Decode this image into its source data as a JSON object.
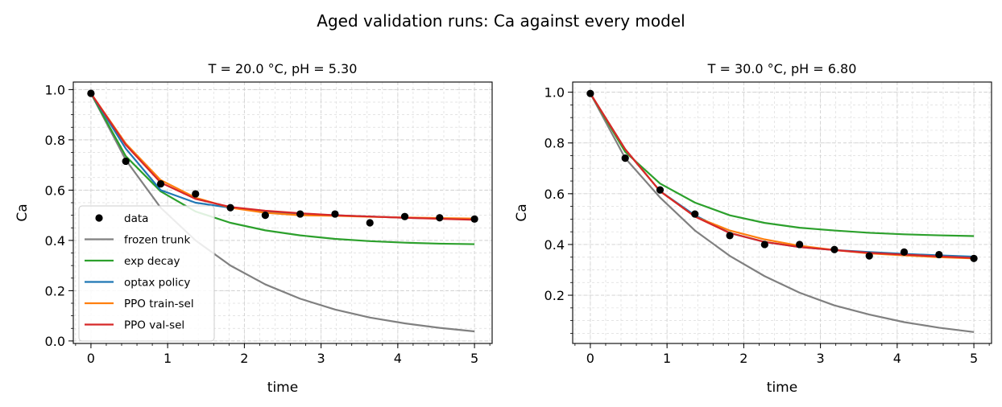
{
  "figure": {
    "title": "Aged validation runs: Ca against every model"
  },
  "colors": {
    "data": "#000000",
    "frozen trunk": "#808080",
    "exp decay": "#2ca02c",
    "optax policy": "#1f77b4",
    "PPO train-sel": "#ff7f0e",
    "PPO val-sel": "#d62728",
    "grid": "#dcdcdc"
  },
  "legend": {
    "location": "lower-left of left panel",
    "entries": [
      "data",
      "frozen trunk",
      "exp decay",
      "optax policy",
      "PPO train-sel",
      "PPO val-sel"
    ]
  },
  "chart_data": [
    {
      "type": "line",
      "title": "T = 20.0 °C, pH = 5.30",
      "xlabel": "time",
      "ylabel": "Ca",
      "xlim": [
        -0.23,
        5.23
      ],
      "ylim": [
        -0.01,
        1.03
      ],
      "xticks": [
        "0",
        "1",
        "2",
        "3",
        "4",
        "5"
      ],
      "yticks": [
        "0.0",
        "0.2",
        "0.4",
        "0.6",
        "0.8",
        "1.0"
      ],
      "grid": true,
      "x": [
        0,
        0.4545,
        0.9091,
        1.3636,
        1.8182,
        2.2727,
        2.7273,
        3.1818,
        3.6364,
        4.0909,
        4.5455,
        5.0
      ],
      "scatter": {
        "name": "data",
        "values": [
          0.985,
          0.715,
          0.625,
          0.585,
          0.53,
          0.5,
          0.505,
          0.505,
          0.47,
          0.495,
          0.49,
          0.485
        ]
      },
      "series": [
        {
          "name": "frozen trunk",
          "values": [
            0.985,
            0.72,
            0.53,
            0.4,
            0.3,
            0.225,
            0.168,
            0.125,
            0.093,
            0.07,
            0.052,
            0.038
          ]
        },
        {
          "name": "exp decay",
          "values": [
            0.985,
            0.735,
            0.595,
            0.515,
            0.47,
            0.44,
            0.42,
            0.406,
            0.397,
            0.391,
            0.387,
            0.385
          ]
        },
        {
          "name": "optax policy",
          "values": [
            0.985,
            0.765,
            0.6,
            0.55,
            0.53,
            0.515,
            0.505,
            0.5,
            0.495,
            0.49,
            0.487,
            0.484
          ]
        },
        {
          "name": "PPO train-sel",
          "values": [
            0.985,
            0.785,
            0.64,
            0.57,
            0.53,
            0.51,
            0.5,
            0.498,
            0.494,
            0.491,
            0.489,
            0.487
          ]
        },
        {
          "name": "PPO val-sel",
          "values": [
            0.985,
            0.78,
            0.63,
            0.565,
            0.533,
            0.518,
            0.508,
            0.5,
            0.495,
            0.49,
            0.486,
            0.482
          ]
        }
      ]
    },
    {
      "type": "line",
      "title": "T = 30.0 °C, pH = 6.80",
      "xlabel": "time",
      "ylabel": "Ca",
      "xlim": [
        -0.23,
        5.23
      ],
      "ylim": [
        0.01,
        1.04
      ],
      "xticks": [
        "0",
        "1",
        "2",
        "3",
        "4",
        "5"
      ],
      "yticks": [
        "0.2",
        "0.4",
        "0.6",
        "0.8",
        "1.0"
      ],
      "grid": true,
      "x": [
        0,
        0.4545,
        0.9091,
        1.3636,
        1.8182,
        2.2727,
        2.7273,
        3.1818,
        3.6364,
        4.0909,
        4.5455,
        5.0
      ],
      "scatter": {
        "name": "data",
        "values": [
          0.995,
          0.74,
          0.615,
          0.52,
          0.435,
          0.4,
          0.4,
          0.38,
          0.355,
          0.37,
          0.36,
          0.345
        ]
      },
      "series": [
        {
          "name": "frozen trunk",
          "values": [
            0.995,
            0.74,
            0.585,
            0.455,
            0.355,
            0.275,
            0.21,
            0.16,
            0.124,
            0.094,
            0.072,
            0.055
          ]
        },
        {
          "name": "exp decay",
          "values": [
            0.995,
            0.765,
            0.64,
            0.565,
            0.515,
            0.485,
            0.466,
            0.455,
            0.446,
            0.44,
            0.436,
            0.433
          ]
        },
        {
          "name": "optax policy",
          "values": [
            0.995,
            0.775,
            0.61,
            0.515,
            0.445,
            0.41,
            0.39,
            0.378,
            0.37,
            0.363,
            0.357,
            0.352
          ]
        },
        {
          "name": "PPO train-sel",
          "values": [
            0.995,
            0.775,
            0.61,
            0.51,
            0.455,
            0.42,
            0.395,
            0.378,
            0.365,
            0.357,
            0.35,
            0.345
          ]
        },
        {
          "name": "PPO val-sel",
          "values": [
            0.995,
            0.775,
            0.61,
            0.51,
            0.445,
            0.41,
            0.39,
            0.378,
            0.367,
            0.36,
            0.353,
            0.347
          ]
        }
      ]
    }
  ]
}
